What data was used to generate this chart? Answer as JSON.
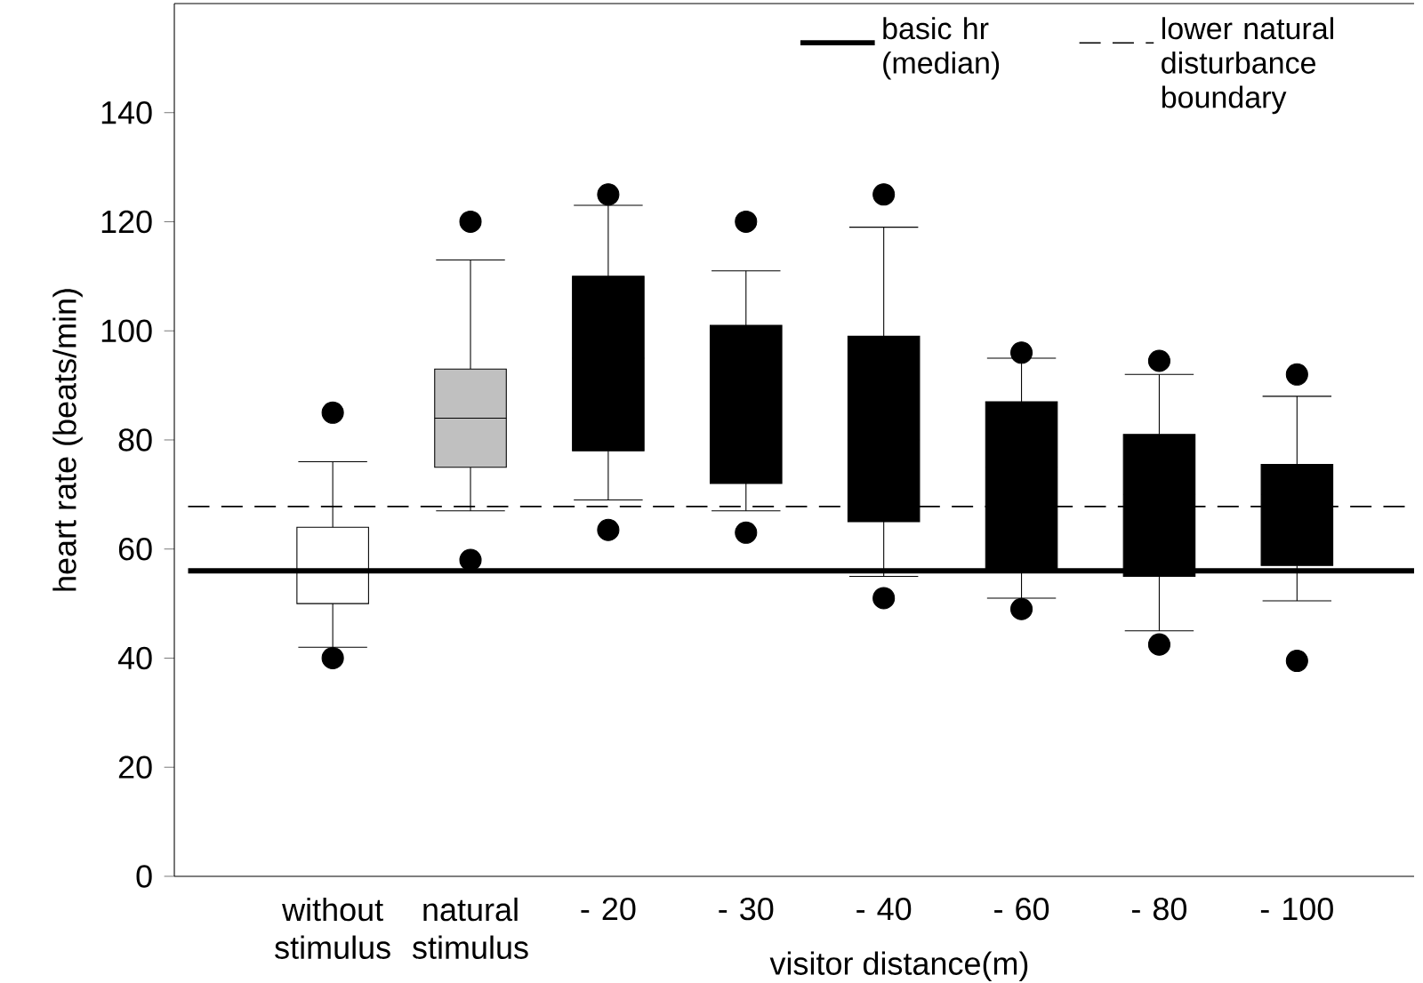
{
  "chart_data": {
    "type": "box",
    "xlabel": "visitor distance(m)",
    "ylabel": "heart rate (beats/min)",
    "categories": [
      "without stimulus",
      "natural stimulus",
      "- 20",
      "- 30",
      "- 40",
      "- 60",
      "- 80",
      "- 100"
    ],
    "colors": [
      "#ffffff",
      "#c0c0c0",
      "#000000",
      "#000000",
      "#000000",
      "#000000",
      "#000000",
      "#000000"
    ],
    "boxes": [
      {
        "low": 42,
        "q1": 50,
        "median": 56,
        "q3": 64,
        "high": 76,
        "outliers": [
          85,
          40
        ]
      },
      {
        "low": 67,
        "q1": 75,
        "median": 84,
        "q3": 93,
        "high": 113,
        "outliers": [
          120,
          58
        ]
      },
      {
        "low": 69,
        "q1": 78,
        "median": 95,
        "q3": 110,
        "high": 123,
        "outliers": [
          125,
          63.5
        ]
      },
      {
        "low": 67,
        "q1": 72,
        "median": 87,
        "q3": 101,
        "high": 111,
        "outliers": [
          120,
          63
        ]
      },
      {
        "low": 55,
        "q1": 65,
        "median": 80,
        "q3": 99,
        "high": 119,
        "outliers": [
          125,
          51
        ]
      },
      {
        "low": 51,
        "q1": 56,
        "median": 75,
        "q3": 87,
        "high": 95,
        "outliers": [
          96,
          49
        ]
      },
      {
        "low": 45,
        "q1": 55,
        "median": 70,
        "q3": 81,
        "high": 92,
        "outliers": [
          94.5,
          42.5
        ]
      },
      {
        "low": 50.5,
        "q1": 57,
        "median": 70,
        "q3": 75.5,
        "high": 88,
        "outliers": [
          92,
          39.5
        ]
      }
    ],
    "ylim": [
      0,
      160
    ],
    "yticks": [
      0,
      20,
      40,
      60,
      80,
      100,
      120,
      140
    ],
    "ref_lines": [
      {
        "axis": "y",
        "value": 56,
        "label": "basic hr (median)",
        "color": "#000000",
        "line_style": "solid"
      },
      {
        "axis": "y",
        "value": 67.8,
        "label": "lower natural disturbance boundary",
        "color": "#000000",
        "line_style": "dashed"
      }
    ],
    "legend": "top right"
  }
}
